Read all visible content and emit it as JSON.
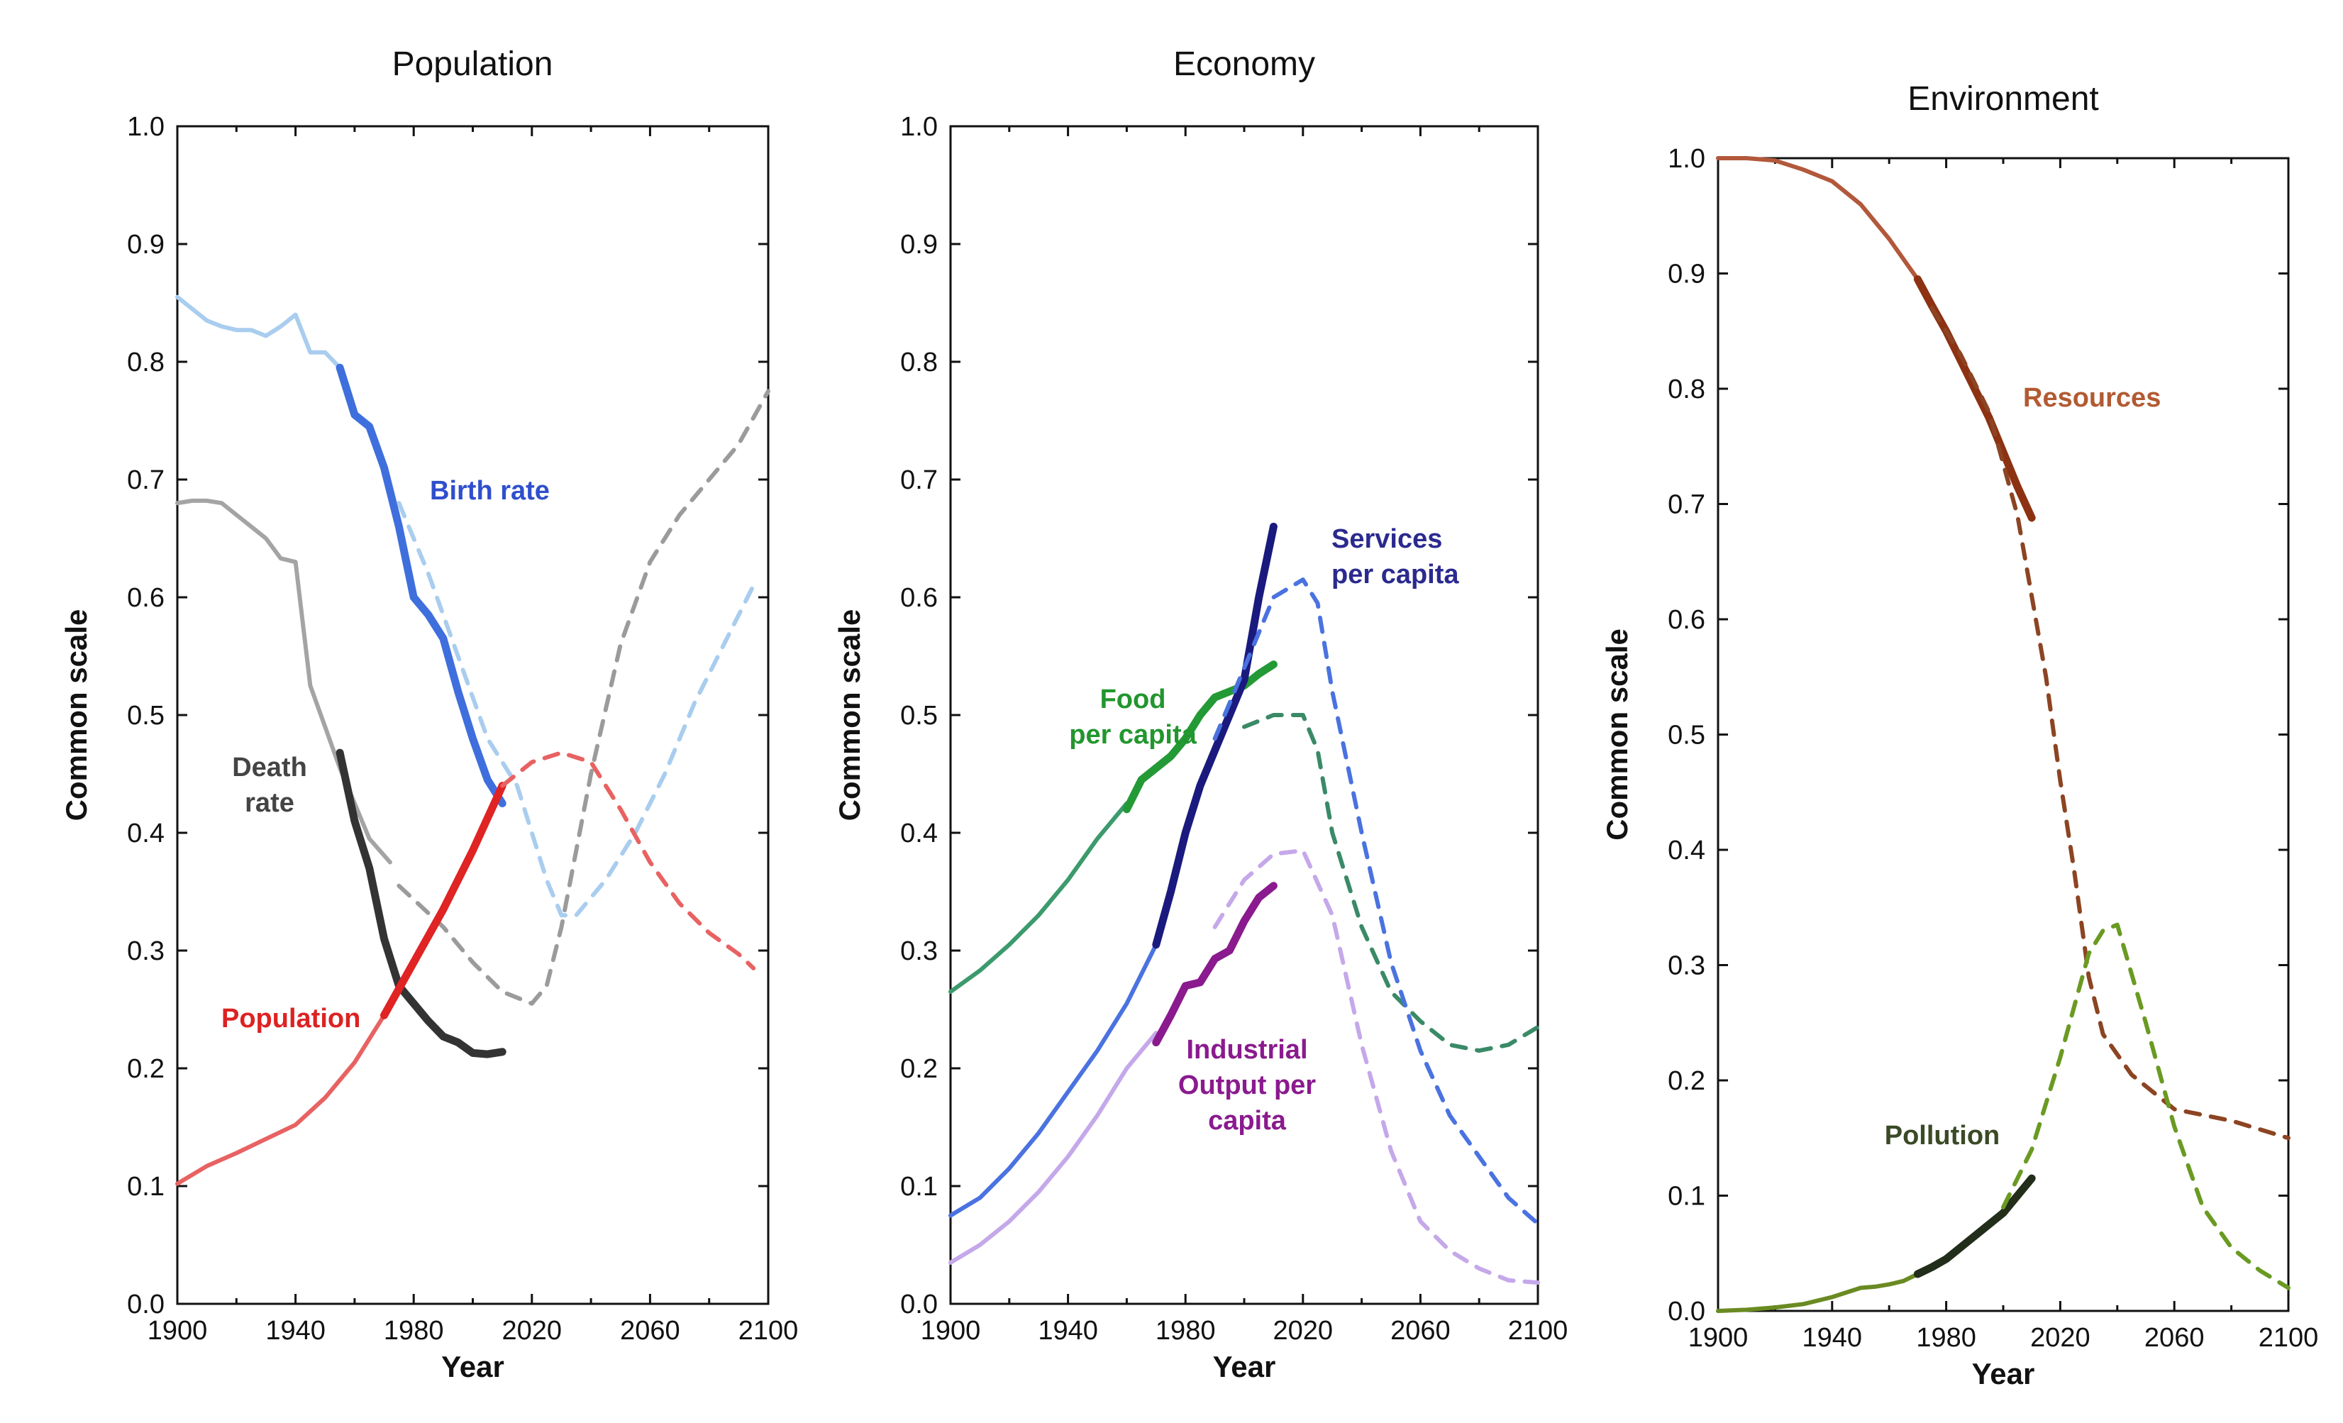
{
  "chart_data": [
    {
      "type": "line",
      "title": "Population",
      "xlabel": "Year",
      "ylabel": "Common scale",
      "xlim": [
        1900,
        2100
      ],
      "ylim": [
        0.0,
        1.0
      ],
      "xticks": [
        "1900",
        "1940",
        "1980",
        "2020",
        "2060",
        "2100"
      ],
      "xtick_values": [
        1900,
        1940,
        1980,
        2020,
        2060,
        2100
      ],
      "yticks": [
        "0.0",
        "0.1",
        "0.2",
        "0.3",
        "0.4",
        "0.5",
        "0.6",
        "0.7",
        "0.8",
        "0.9",
        "1.0"
      ],
      "ytick_values": [
        0.0,
        0.1,
        0.2,
        0.3,
        0.4,
        0.5,
        0.6,
        0.7,
        0.8,
        0.9,
        1.0
      ],
      "series": [
        {
          "name": "Birth rate (model, light)",
          "color": "#a9cdee",
          "style": "solid",
          "x": [
            1900,
            1905,
            1910,
            1915,
            1920,
            1925,
            1930,
            1935,
            1940,
            1945,
            1950,
            1955
          ],
          "y": [
            0.855,
            0.845,
            0.835,
            0.83,
            0.827,
            0.827,
            0.822,
            0.83,
            0.84,
            0.808,
            0.808,
            0.795
          ]
        },
        {
          "name": "Birth rate (data)",
          "color": "#3f6fdd",
          "style": "thick",
          "x": [
            1955,
            1960,
            1965,
            1970,
            1975,
            1980,
            1985,
            1990,
            1995,
            2000,
            2005,
            2010
          ],
          "y": [
            0.795,
            0.755,
            0.745,
            0.71,
            0.66,
            0.6,
            0.585,
            0.565,
            0.52,
            0.48,
            0.445,
            0.425
          ]
        },
        {
          "name": "Birth rate (projection)",
          "color": "#a9cdee",
          "style": "dashed",
          "x": [
            1975,
            1985,
            1995,
            2005,
            2015,
            2025,
            2030,
            2035,
            2045,
            2055,
            2065,
            2075,
            2085,
            2095
          ],
          "y": [
            0.68,
            0.62,
            0.55,
            0.48,
            0.44,
            0.36,
            0.33,
            0.33,
            0.36,
            0.4,
            0.45,
            0.51,
            0.56,
            0.61
          ]
        },
        {
          "name": "Death rate (model, light)",
          "color": "#a4a4a4",
          "style": "solid",
          "x": [
            1900,
            1905,
            1910,
            1915,
            1920,
            1925,
            1930,
            1935,
            1940,
            1945,
            1950,
            1955,
            1960,
            1965,
            1972
          ],
          "y": [
            0.68,
            0.682,
            0.682,
            0.68,
            0.67,
            0.66,
            0.65,
            0.633,
            0.63,
            0.525,
            0.49,
            0.455,
            0.425,
            0.395,
            0.375
          ]
        },
        {
          "name": "Death rate (data)",
          "color": "#333333",
          "style": "thick",
          "x": [
            1955,
            1960,
            1965,
            1970,
            1975,
            1980,
            1985,
            1990,
            1995,
            2000,
            2005,
            2010
          ],
          "y": [
            0.468,
            0.41,
            0.37,
            0.31,
            0.27,
            0.255,
            0.24,
            0.227,
            0.222,
            0.213,
            0.212,
            0.214
          ]
        },
        {
          "name": "Death rate (projection)",
          "color": "#9b9b9b",
          "style": "dashed",
          "x": [
            1975,
            1990,
            2000,
            2010,
            2020,
            2025,
            2030,
            2040,
            2050,
            2060,
            2070,
            2080,
            2090,
            2100
          ],
          "y": [
            0.355,
            0.32,
            0.29,
            0.265,
            0.255,
            0.27,
            0.32,
            0.45,
            0.56,
            0.63,
            0.67,
            0.7,
            0.73,
            0.775
          ]
        },
        {
          "name": "Population (model, light)",
          "color": "#e86262",
          "style": "solid",
          "x": [
            1900,
            1910,
            1920,
            1930,
            1940,
            1950,
            1960,
            1970
          ],
          "y": [
            0.102,
            0.117,
            0.128,
            0.14,
            0.152,
            0.175,
            0.205,
            0.245
          ]
        },
        {
          "name": "Population (data)",
          "color": "#e02323",
          "style": "thick",
          "x": [
            1970,
            1980,
            1990,
            2000,
            2010
          ],
          "y": [
            0.245,
            0.29,
            0.335,
            0.385,
            0.44
          ]
        },
        {
          "name": "Population (projection)",
          "color": "#e86262",
          "style": "dashed",
          "x": [
            2010,
            2020,
            2030,
            2040,
            2050,
            2060,
            2070,
            2080,
            2090,
            2095
          ],
          "y": [
            0.44,
            0.46,
            0.468,
            0.46,
            0.42,
            0.375,
            0.34,
            0.315,
            0.297,
            0.285
          ]
        }
      ],
      "annotations": [
        {
          "text": [
            "Birth rate"
          ],
          "color": "#2f4fcc"
        },
        {
          "text": [
            "Death",
            "rate"
          ],
          "color": "#444444"
        },
        {
          "text": [
            "Population"
          ],
          "color": "#dd2222"
        }
      ]
    },
    {
      "type": "line",
      "title": "Economy",
      "xlabel": "Year",
      "ylabel": "Common scale",
      "xlim": [
        1900,
        2100
      ],
      "ylim": [
        0.0,
        1.0
      ],
      "xticks": [
        "1900",
        "1940",
        "1980",
        "2020",
        "2060",
        "2100"
      ],
      "xtick_values": [
        1900,
        1940,
        1980,
        2020,
        2060,
        2100
      ],
      "yticks": [
        "0.0",
        "0.1",
        "0.2",
        "0.3",
        "0.4",
        "0.5",
        "0.6",
        "0.7",
        "0.8",
        "0.9",
        "1.0"
      ],
      "ytick_values": [
        0.0,
        0.1,
        0.2,
        0.3,
        0.4,
        0.5,
        0.6,
        0.7,
        0.8,
        0.9,
        1.0
      ],
      "series": [
        {
          "name": "Food per capita (model)",
          "color": "#3c9a6c",
          "style": "solid",
          "x": [
            1900,
            1910,
            1920,
            1930,
            1940,
            1950,
            1960
          ],
          "y": [
            0.265,
            0.283,
            0.305,
            0.33,
            0.36,
            0.395,
            0.425
          ]
        },
        {
          "name": "Food per capita (data)",
          "color": "#239a35",
          "style": "thick",
          "x": [
            1960,
            1965,
            1970,
            1975,
            1980,
            1985,
            1990,
            1995,
            2000,
            2005,
            2010
          ],
          "y": [
            0.42,
            0.445,
            0.455,
            0.465,
            0.48,
            0.5,
            0.515,
            0.52,
            0.525,
            0.535,
            0.543
          ]
        },
        {
          "name": "Food per capita (projection)",
          "color": "#3a8a68",
          "style": "dashed",
          "x": [
            2000,
            2010,
            2020,
            2025,
            2030,
            2040,
            2050,
            2060,
            2070,
            2080,
            2090,
            2100
          ],
          "y": [
            0.49,
            0.5,
            0.5,
            0.47,
            0.4,
            0.32,
            0.265,
            0.24,
            0.22,
            0.215,
            0.22,
            0.235
          ]
        },
        {
          "name": "Services per capita (model)",
          "color": "#4a72e0",
          "style": "solid",
          "x": [
            1900,
            1910,
            1920,
            1930,
            1940,
            1950,
            1960,
            1970
          ],
          "y": [
            0.075,
            0.09,
            0.115,
            0.145,
            0.18,
            0.215,
            0.255,
            0.305
          ]
        },
        {
          "name": "Services per capita (data)",
          "color": "#1a1a7e",
          "style": "thick",
          "x": [
            1970,
            1975,
            1980,
            1985,
            1990,
            1995,
            2000,
            2005,
            2010
          ],
          "y": [
            0.305,
            0.35,
            0.4,
            0.44,
            0.47,
            0.5,
            0.53,
            0.6,
            0.66
          ]
        },
        {
          "name": "Services per capita (projection)",
          "color": "#4a72e0",
          "style": "dashed",
          "x": [
            1990,
            2000,
            2010,
            2020,
            2025,
            2030,
            2040,
            2050,
            2060,
            2070,
            2080,
            2090,
            2100
          ],
          "y": [
            0.48,
            0.54,
            0.6,
            0.615,
            0.595,
            0.52,
            0.4,
            0.29,
            0.215,
            0.16,
            0.125,
            0.09,
            0.068
          ]
        },
        {
          "name": "Industrial Output per capita (model)",
          "color": "#c5a8ea",
          "style": "solid",
          "x": [
            1900,
            1910,
            1920,
            1930,
            1940,
            1950,
            1960,
            1970
          ],
          "y": [
            0.035,
            0.05,
            0.07,
            0.095,
            0.125,
            0.16,
            0.2,
            0.23
          ]
        },
        {
          "name": "Industrial Output per capita (data)",
          "color": "#8a1a8e",
          "style": "thick",
          "x": [
            1970,
            1975,
            1980,
            1985,
            1990,
            1995,
            2000,
            2005,
            2010
          ],
          "y": [
            0.222,
            0.245,
            0.27,
            0.273,
            0.293,
            0.3,
            0.325,
            0.345,
            0.355
          ]
        },
        {
          "name": "Industrial Output per capita (projection)",
          "color": "#c5a8ea",
          "style": "dashed",
          "x": [
            1990,
            2000,
            2010,
            2020,
            2030,
            2040,
            2050,
            2060,
            2070,
            2080,
            2090,
            2100
          ],
          "y": [
            0.32,
            0.36,
            0.382,
            0.385,
            0.33,
            0.22,
            0.13,
            0.07,
            0.045,
            0.03,
            0.02,
            0.018
          ]
        }
      ],
      "annotations": [
        {
          "text": [
            "Services",
            "per capita"
          ],
          "color": "#2a2a8e"
        },
        {
          "text": [
            "Food",
            "per capita"
          ],
          "color": "#22962e"
        },
        {
          "text": [
            "Industrial",
            "Output per",
            "capita"
          ],
          "color": "#8a1a8e"
        }
      ]
    },
    {
      "type": "line",
      "title": "Environment",
      "xlabel": "Year",
      "ylabel": "Common scale",
      "xlim": [
        1900,
        2100
      ],
      "ylim": [
        0.0,
        1.0
      ],
      "xticks": [
        "1900",
        "1940",
        "1980",
        "2020",
        "2060",
        "2100"
      ],
      "xtick_values": [
        1900,
        1940,
        1980,
        2020,
        2060,
        2100
      ],
      "yticks": [
        "0.0",
        "0.1",
        "0.2",
        "0.3",
        "0.4",
        "0.5",
        "0.6",
        "0.7",
        "0.8",
        "0.9",
        "1.0"
      ],
      "ytick_values": [
        0.0,
        0.1,
        0.2,
        0.3,
        0.4,
        0.5,
        0.6,
        0.7,
        0.8,
        0.9,
        1.0
      ],
      "series": [
        {
          "name": "Resources (model)",
          "color": "#b2583b",
          "style": "solid",
          "x": [
            1900,
            1910,
            1920,
            1930,
            1940,
            1950,
            1960,
            1970
          ],
          "y": [
            1.0,
            1.0,
            0.998,
            0.99,
            0.98,
            0.96,
            0.93,
            0.895
          ]
        },
        {
          "name": "Resources (data)",
          "color": "#8c3212",
          "style": "thick",
          "x": [
            1970,
            1975,
            1980,
            1985,
            1990,
            1995,
            2000,
            2005,
            2010
          ],
          "y": [
            0.895,
            0.872,
            0.85,
            0.825,
            0.8,
            0.775,
            0.745,
            0.715,
            0.688
          ]
        },
        {
          "name": "Resources (projection)",
          "color": "#8c4422",
          "style": "dashed",
          "x": [
            1975,
            1985,
            1995,
            2005,
            2015,
            2020,
            2025,
            2030,
            2035,
            2045,
            2060,
            2080,
            2100
          ],
          "y": [
            0.87,
            0.83,
            0.78,
            0.69,
            0.55,
            0.46,
            0.38,
            0.29,
            0.24,
            0.205,
            0.175,
            0.165,
            0.15
          ]
        },
        {
          "name": "Pollution (model)",
          "color": "#6a8a22",
          "style": "solid",
          "x": [
            1900,
            1910,
            1920,
            1930,
            1940,
            1945,
            1950,
            1955,
            1960,
            1965,
            1970
          ],
          "y": [
            0.0,
            0.001,
            0.003,
            0.006,
            0.012,
            0.016,
            0.02,
            0.021,
            0.023,
            0.026,
            0.032
          ]
        },
        {
          "name": "Pollution (data)",
          "color": "#222e1a",
          "style": "thick",
          "x": [
            1970,
            1975,
            1980,
            1985,
            1990,
            1995,
            2000,
            2005,
            2010
          ],
          "y": [
            0.032,
            0.038,
            0.045,
            0.055,
            0.065,
            0.075,
            0.085,
            0.1,
            0.115
          ]
        },
        {
          "name": "Pollution (projection)",
          "color": "#6a9a22",
          "style": "dashed",
          "x": [
            2000,
            2010,
            2020,
            2030,
            2035,
            2040,
            2050,
            2060,
            2070,
            2080,
            2090,
            2100
          ],
          "y": [
            0.09,
            0.14,
            0.22,
            0.31,
            0.33,
            0.335,
            0.25,
            0.16,
            0.09,
            0.055,
            0.035,
            0.02
          ]
        }
      ],
      "annotations": [
        {
          "text": [
            "Resources"
          ],
          "color": "#b25a32"
        },
        {
          "text": [
            "Pollution"
          ],
          "color": "#3a4a26"
        }
      ]
    }
  ]
}
